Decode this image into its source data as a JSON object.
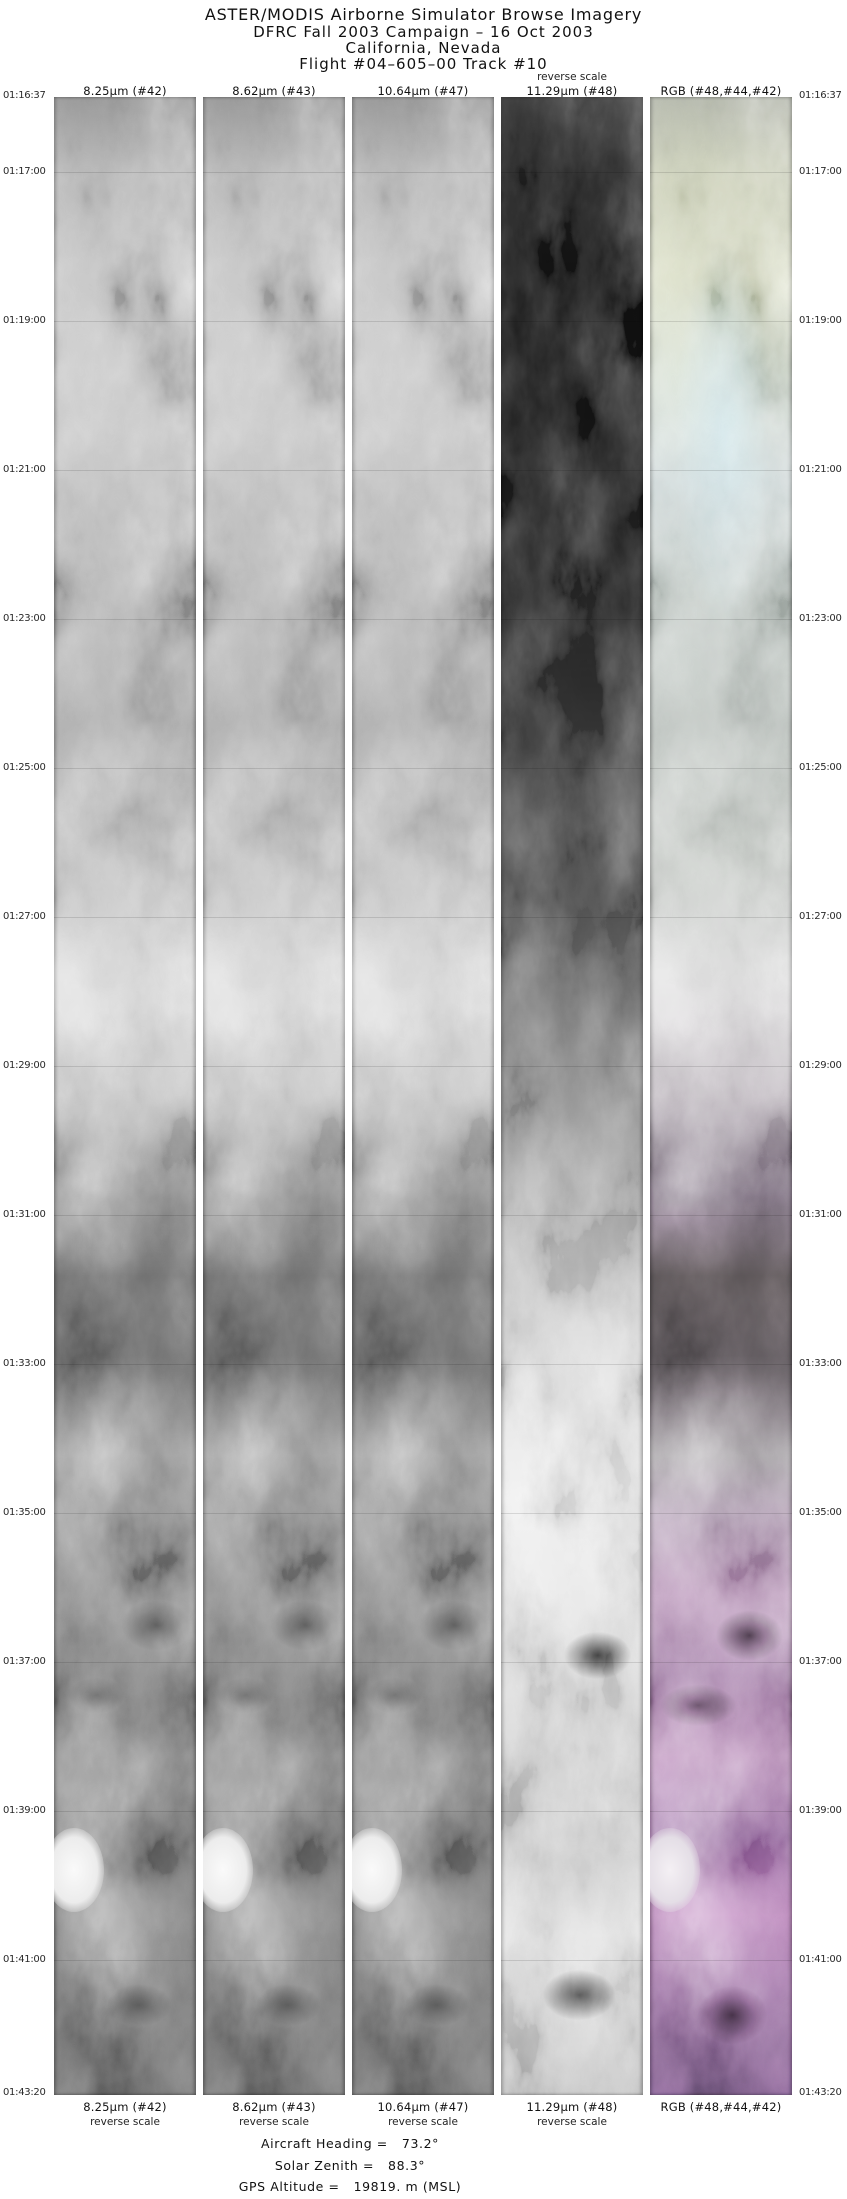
{
  "header": {
    "title": "ASTER/MODIS Airborne Simulator Browse Imagery",
    "campaign": "DFRC Fall 2003 Campaign – 16 Oct 2003",
    "location": "California, Nevada",
    "flight": "Flight #04–605–00 Track #10"
  },
  "reverse_scale_text": "reverse scale",
  "columns": [
    {
      "label": "8.25μm (#42)",
      "scale": "reverse",
      "type": "grayscale"
    },
    {
      "label": "8.62μm (#43)",
      "scale": "reverse",
      "type": "grayscale"
    },
    {
      "label": "10.64μm (#47)",
      "scale": "reverse",
      "type": "grayscale"
    },
    {
      "label": "11.29μm (#48)",
      "scale": "reverse",
      "type": "grayscale-high-contrast",
      "reverse_scale_noted_top": true
    },
    {
      "label": "RGB (#48,#44,#42)",
      "scale": "normal",
      "type": "rgb-composite"
    }
  ],
  "timestamps": [
    "01:16:37",
    "01:17:00",
    "01:19:00",
    "01:21:00",
    "01:23:00",
    "01:25:00",
    "01:27:00",
    "01:29:00",
    "01:31:00",
    "01:33:00",
    "01:35:00",
    "01:37:00",
    "01:39:00",
    "01:41:00",
    "01:43:20"
  ],
  "footer": {
    "lines": [
      {
        "label": "Aircraft Heading =",
        "value": "73.2°"
      },
      {
        "label": "Solar Zenith =",
        "value": "88.3°"
      },
      {
        "label": "GPS Altitude =",
        "value": "19819. m (MSL)"
      }
    ]
  },
  "chart_data": {
    "type": "heatmap",
    "title": "ASTER/MODIS Airborne Simulator Browse Imagery",
    "subtitle": [
      "DFRC Fall 2003 Campaign – 16 Oct 2003",
      "California, Nevada",
      "Flight #04–605–00 Track #10"
    ],
    "panels": [
      {
        "band": "8.25μm",
        "channel": "#42",
        "scale": "reverse scale",
        "appearance": "grayscale terrain strip"
      },
      {
        "band": "8.62μm",
        "channel": "#43",
        "scale": "reverse scale",
        "appearance": "grayscale terrain strip, nearly identical to 8.25μm"
      },
      {
        "band": "10.64μm",
        "channel": "#47",
        "scale": "reverse scale",
        "appearance": "grayscale terrain strip, nearly identical to 8.25μm"
      },
      {
        "band": "11.29μm",
        "channel": "#48",
        "scale": "reverse scale",
        "appearance": "high-contrast strip: near-black top third, bright white lower half"
      },
      {
        "band": "RGB",
        "channel": "#48,#44,#42",
        "scale": "normal",
        "appearance": "color composite: pale yellow-green top, whitish middle, purple/magenta mottled lower half"
      }
    ],
    "y_axis": {
      "ticks": [
        "01:16:37",
        "01:17:00",
        "01:19:00",
        "01:21:00",
        "01:23:00",
        "01:25:00",
        "01:27:00",
        "01:29:00",
        "01:31:00",
        "01:33:00",
        "01:35:00",
        "01:37:00",
        "01:39:00",
        "01:41:00",
        "01:43:20"
      ],
      "range": [
        "01:16:37",
        "01:43:20"
      ],
      "side": "both"
    },
    "annotations": [
      "Aircraft Heading =  73.2°",
      "Solar Zenith =  88.3°",
      "GPS Altitude =  19819. m (MSL)"
    ],
    "legend_position": "none",
    "grid": false
  }
}
